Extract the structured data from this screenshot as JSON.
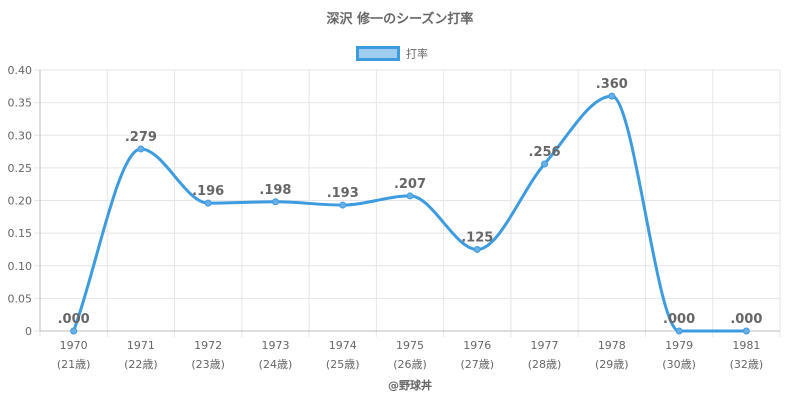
{
  "chart_data": {
    "type": "line",
    "title": "深沢 修一のシーズン打率",
    "categories": [
      "1970",
      "1971",
      "1972",
      "1973",
      "1974",
      "1975",
      "1976",
      "1977",
      "1978",
      "1979",
      "1981"
    ],
    "category_sublabels": [
      "(21歳)",
      "(22歳)",
      "(23歳)",
      "(24歳)",
      "(25歳)",
      "(26歳)",
      "(27歳)",
      "(28歳)",
      "(29歳)",
      "(30歳)",
      "(32歳)"
    ],
    "series": [
      {
        "name": "打率",
        "values": [
          0.0,
          0.279,
          0.196,
          0.198,
          0.193,
          0.207,
          0.125,
          0.256,
          0.36,
          0.0,
          0.0
        ],
        "labels": [
          ".000",
          ".279",
          ".196",
          ".198",
          ".193",
          ".207",
          ".125",
          ".256",
          ".360",
          ".000",
          ".000"
        ]
      }
    ],
    "ylim": [
      0,
      0.4
    ],
    "yticks": [
      "0",
      "0.05",
      "0.10",
      "0.15",
      "0.20",
      "0.25",
      "0.30",
      "0.35",
      "0.40"
    ],
    "grid": true,
    "legend": "top-center",
    "credit": "@野球丼",
    "colors": {
      "line": "#3d9be0",
      "legend_fill": "#9fcdf0",
      "point": "#6aaee6"
    }
  }
}
